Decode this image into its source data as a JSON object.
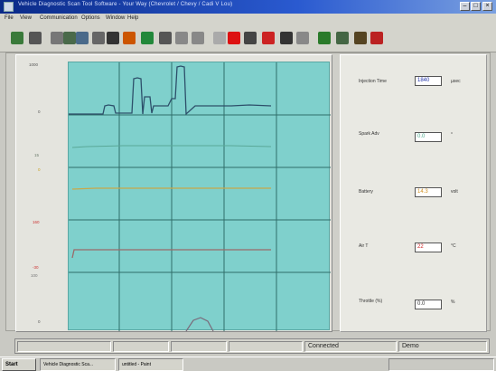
{
  "window": {
    "title": "Vehicle Diagnostic Scan Tool Software - Your Way (Chevrolet / Chevy / Cadi V Lou)"
  },
  "menu": {
    "items": [
      "File",
      "View",
      "Communication",
      "Options",
      "Window",
      "Help"
    ]
  },
  "toolbar": {
    "icons": [
      {
        "name": "open-icon",
        "color": "#3a7a3a"
      },
      {
        "name": "print-icon",
        "color": "#555555"
      },
      {
        "name": "settings-icon",
        "color": "#777777"
      },
      {
        "name": "grid-icon",
        "color": "#4a6a4a"
      },
      {
        "name": "table-icon",
        "color": "#4a6a8a"
      },
      {
        "name": "filter-icon",
        "color": "#666666"
      },
      {
        "name": "pen-icon",
        "color": "#333333"
      },
      {
        "name": "record-icon",
        "color": "#cc5500"
      },
      {
        "name": "play-icon",
        "color": "#22883a"
      },
      {
        "name": "tools-icon",
        "color": "#555555"
      },
      {
        "name": "eraser-icon",
        "color": "#888888"
      },
      {
        "name": "wrench-icon",
        "color": "#888888"
      },
      {
        "name": "clear-icon",
        "color": "#aaaaaa"
      },
      {
        "name": "stop-icon",
        "color": "#dd1111"
      },
      {
        "name": "refresh-icon",
        "color": "#444444"
      },
      {
        "name": "chart-icon",
        "color": "#cc2222"
      },
      {
        "name": "pid-icon",
        "color": "#333333"
      },
      {
        "name": "capture-icon",
        "color": "#888888"
      },
      {
        "name": "calculator-icon",
        "color": "#2a7a2a"
      },
      {
        "name": "signal-icon",
        "color": "#446644"
      },
      {
        "name": "export-icon",
        "color": "#554422"
      },
      {
        "name": "vehicle-icon",
        "color": "#bb2222"
      }
    ]
  },
  "plot": {
    "background": "#7fd0cc",
    "axis_labels": [
      {
        "text": "1000",
        "color": "#555555"
      },
      {
        "text": "0",
        "color": "#555555"
      },
      {
        "text": "15",
        "color": "#6a7a6a"
      },
      {
        "text": "0",
        "color": "#c8a020"
      },
      {
        "text": "160",
        "color": "#cc3333"
      },
      {
        "text": "-30",
        "color": "#cc3333"
      },
      {
        "text": "100",
        "color": "#777777"
      },
      {
        "text": "0",
        "color": "#555555"
      }
    ],
    "traces": [
      {
        "name": "injection-time-trace",
        "color": "#2d4f6a"
      },
      {
        "name": "spark-adv-trace",
        "color": "#5aa898"
      },
      {
        "name": "battery-trace",
        "color": "#c8a84a"
      },
      {
        "name": "air-temp-trace",
        "color": "#9a6a6a"
      },
      {
        "name": "throttle-trace",
        "color": "#7a6a7a"
      }
    ]
  },
  "parameters": [
    {
      "label": "Injection Time",
      "value": "1840",
      "unit": "µsec",
      "color": "#2233aa"
    },
    {
      "label": "Spark Adv",
      "value": "0.0",
      "unit": "°",
      "color": "#4aa88a"
    },
    {
      "label": "Battery",
      "value": "14.3",
      "unit": "volt",
      "color": "#d09020"
    },
    {
      "label": "Air T",
      "value": "22",
      "unit": "°C",
      "color": "#cc2222"
    },
    {
      "label": "Throttle (%)",
      "value": "0.0",
      "unit": "%",
      "color": "#333333"
    }
  ],
  "status": {
    "connection": "Connected",
    "mode": "Demo"
  },
  "taskbar": {
    "start": "Start",
    "tasks": [
      "Vehicle Diagnostic Sca...",
      "untitled - Paint"
    ]
  }
}
